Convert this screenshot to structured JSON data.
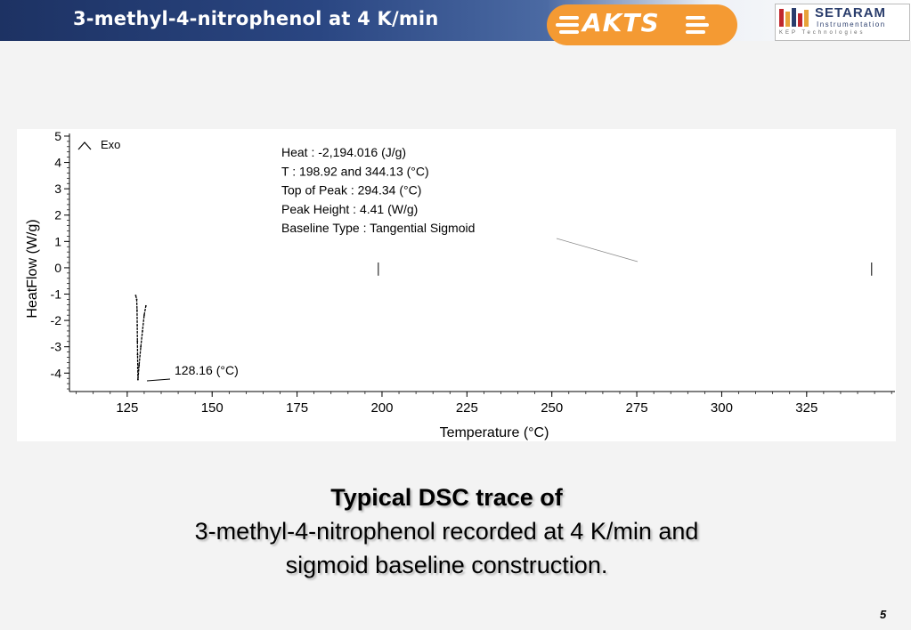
{
  "slide": {
    "title": "3-methyl-4-nitrophenol at 4 K/min",
    "page_number": "5"
  },
  "logos": {
    "akts": "AKTS",
    "setaram_name": "SETARAM",
    "setaram_sub": "Instrumentation",
    "setaram_tech": "KEP Technologies"
  },
  "caption": {
    "line1": "Typical DSC trace of",
    "line2": "3-methyl-4-nitrophenol recorded at 4 K/min and",
    "line3": "sigmoid baseline construction."
  },
  "chart_data": {
    "type": "line",
    "xlabel": "Temperature (°C)",
    "ylabel": "HeatFlow (W/g)",
    "exo_label": "Exo",
    "xlim": [
      108,
      351
    ],
    "ylim": [
      -4.7,
      5.1
    ],
    "x_ticks": [
      125,
      150,
      175,
      200,
      225,
      250,
      275,
      300,
      325
    ],
    "y_ticks": [
      5,
      4,
      3,
      2,
      1,
      0,
      -1,
      -2,
      -3,
      -4
    ],
    "annotation_lines": [
      "Heat :  -2,194.016 (J/g)",
      "T : 198.92 and 344.13 (°C)",
      "Top of Peak :  294.34 (°C)",
      "Peak Height :  4.41 (W/g)",
      "Baseline Type :  Tangential Sigmoid"
    ],
    "peak_label": "128.16 (°C)",
    "series": [
      {
        "x": [
          127.5,
          127.8,
          127.9,
          127.95,
          128.0,
          128.05,
          128.1,
          128.16,
          128.5,
          129.0,
          129.5,
          130.0,
          130.5
        ],
        "y": [
          -1.05,
          -1.2,
          -1.6,
          -2.2,
          -2.8,
          -3.3,
          -3.8,
          -4.25,
          -3.7,
          -3.0,
          -2.4,
          -1.8,
          -1.45
        ]
      }
    ],
    "integration_limits": [
      198.92,
      344.13
    ]
  }
}
